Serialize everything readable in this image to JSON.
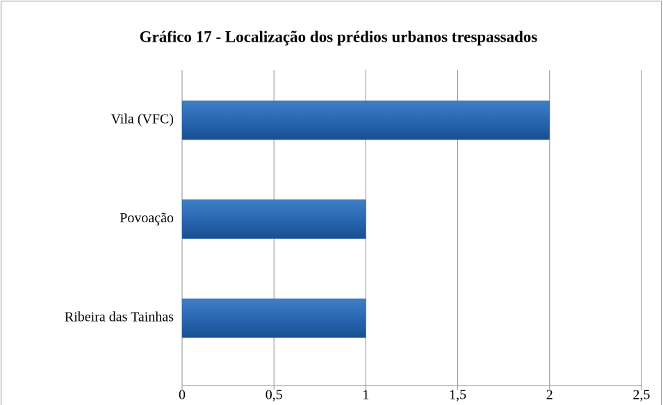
{
  "chart_data": {
    "type": "hbar",
    "title": "Gráfico 17 - Localização dos prédios urbanos trespassados",
    "categories": [
      "Vila (VFC)",
      "Povoação",
      "Ribeira das Tainhas"
    ],
    "values": [
      2,
      1,
      1
    ],
    "color": "#2563ad",
    "xlim": [
      0,
      2.5
    ],
    "xticks": [
      0,
      {
        "value": 0.5,
        "label": "0,5"
      },
      1,
      {
        "value": 1.5,
        "label": "1,5"
      },
      2,
      {
        "value": 2.5,
        "label": "2,5"
      }
    ],
    "grid": true
  }
}
